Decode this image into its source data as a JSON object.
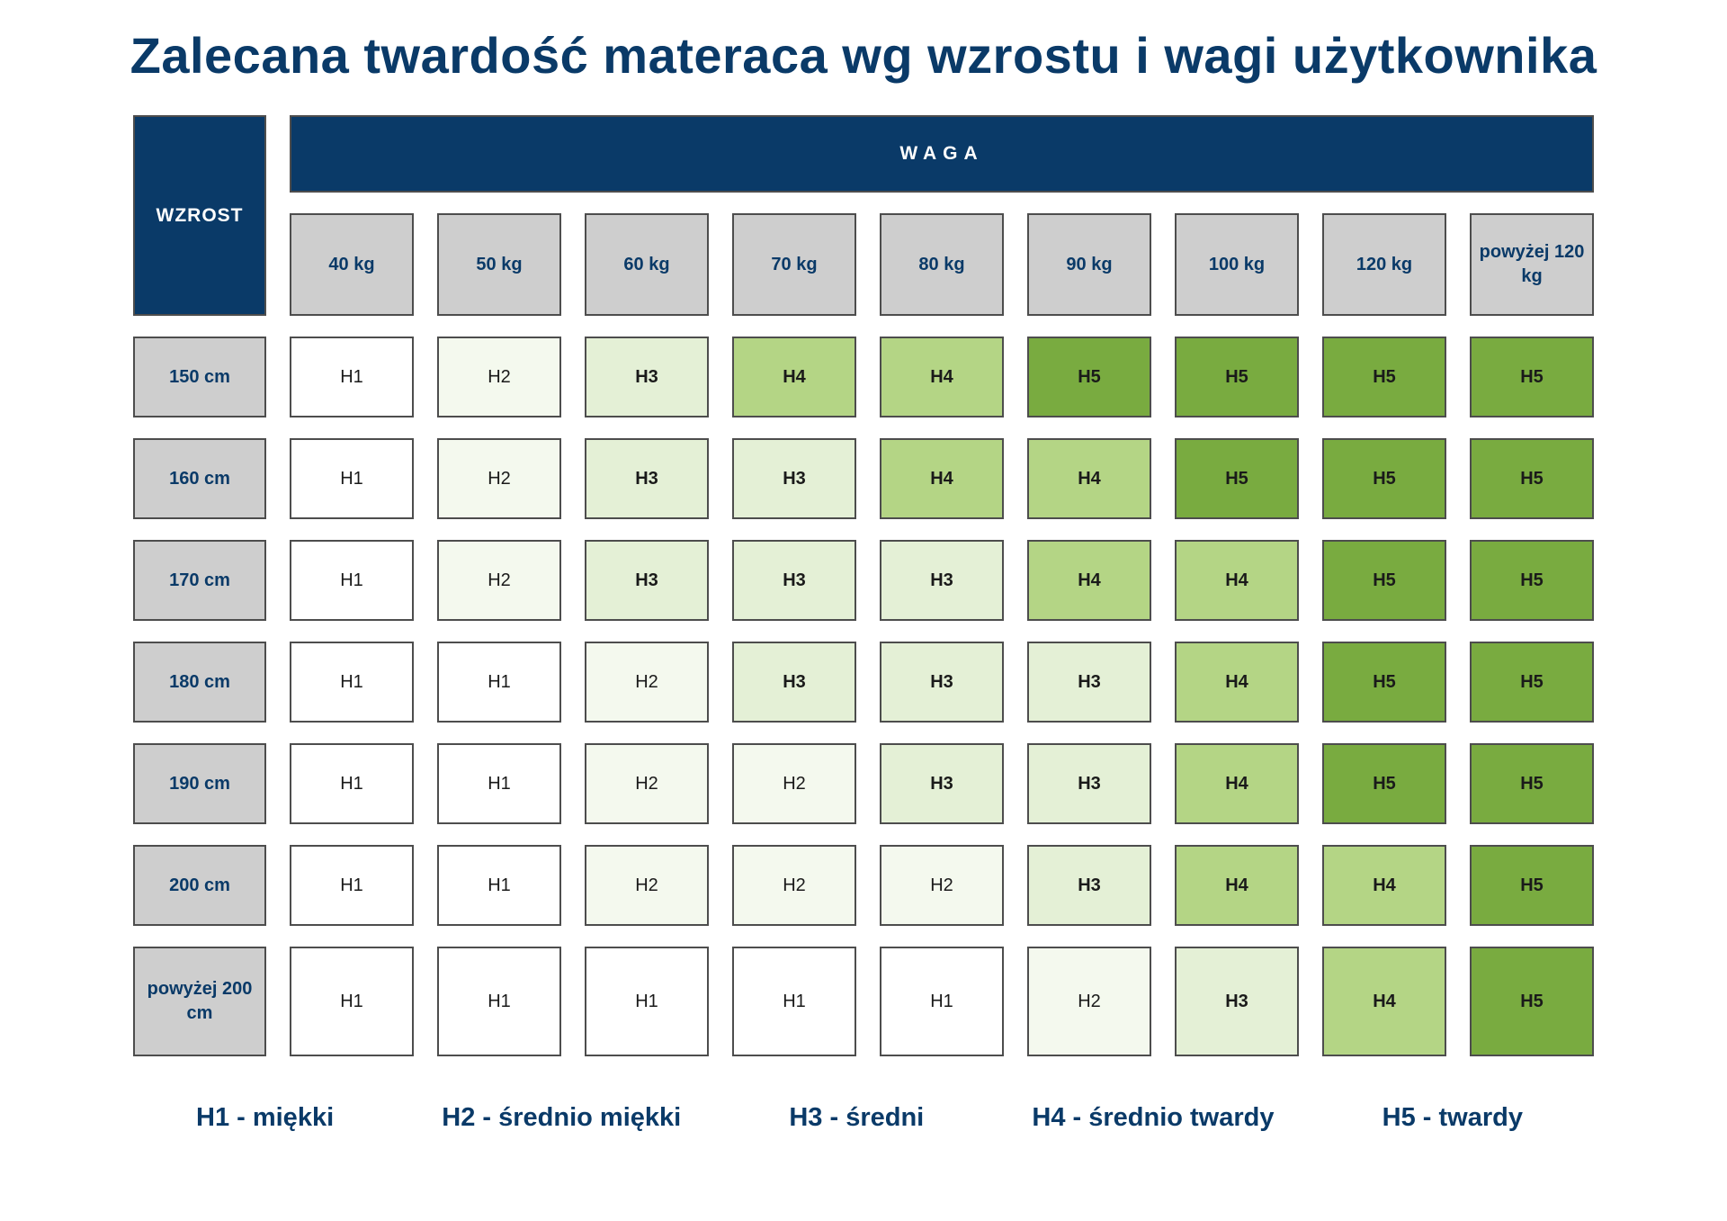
{
  "title": "Zalecana twardość materaca wg wzrostu i wagi użytkownika",
  "chart_data": {
    "type": "table",
    "title": "Zalecana twardość materaca wg wzrostu i wagi użytkownika",
    "corner_label": "WZROST",
    "group_header": "WAGA",
    "x_categories": [
      "40 kg",
      "50 kg",
      "60 kg",
      "70 kg",
      "80 kg",
      "90 kg",
      "100 kg",
      "120 kg",
      "powyżej 120 kg"
    ],
    "y_categories": [
      "150 cm",
      "160 cm",
      "170 cm",
      "180 cm",
      "190 cm",
      "200 cm",
      "powyżej 200 cm"
    ],
    "values": [
      [
        "H1",
        "H2",
        "H3",
        "H4",
        "H4",
        "H5",
        "H5",
        "H5",
        "H5"
      ],
      [
        "H1",
        "H2",
        "H3",
        "H3",
        "H4",
        "H4",
        "H5",
        "H5",
        "H5"
      ],
      [
        "H1",
        "H2",
        "H3",
        "H3",
        "H3",
        "H4",
        "H4",
        "H5",
        "H5"
      ],
      [
        "H1",
        "H1",
        "H2",
        "H3",
        "H3",
        "H3",
        "H4",
        "H5",
        "H5"
      ],
      [
        "H1",
        "H1",
        "H2",
        "H2",
        "H3",
        "H3",
        "H4",
        "H5",
        "H5"
      ],
      [
        "H1",
        "H1",
        "H2",
        "H2",
        "H2",
        "H3",
        "H4",
        "H4",
        "H5"
      ],
      [
        "H1",
        "H1",
        "H1",
        "H1",
        "H1",
        "H2",
        "H3",
        "H4",
        "H5"
      ]
    ],
    "value_colors": {
      "H1": "#ffffff",
      "H2": "#f4f9ee",
      "H3": "#e4f0d6",
      "H4": "#b4d585",
      "H5": "#79ab40"
    },
    "bold_values": [
      "H3",
      "H4",
      "H5"
    ],
    "legend": [
      "H1 - miękki",
      "H2 - średnio miękki",
      "H3 - średni",
      "H4 - średnio twardy",
      "H5 - twardy"
    ]
  },
  "colors": {
    "navy": "#0a3a68",
    "header_gray": "#cecece",
    "cell_border": "#4d4d4d",
    "title_text": "#0a3a68"
  }
}
